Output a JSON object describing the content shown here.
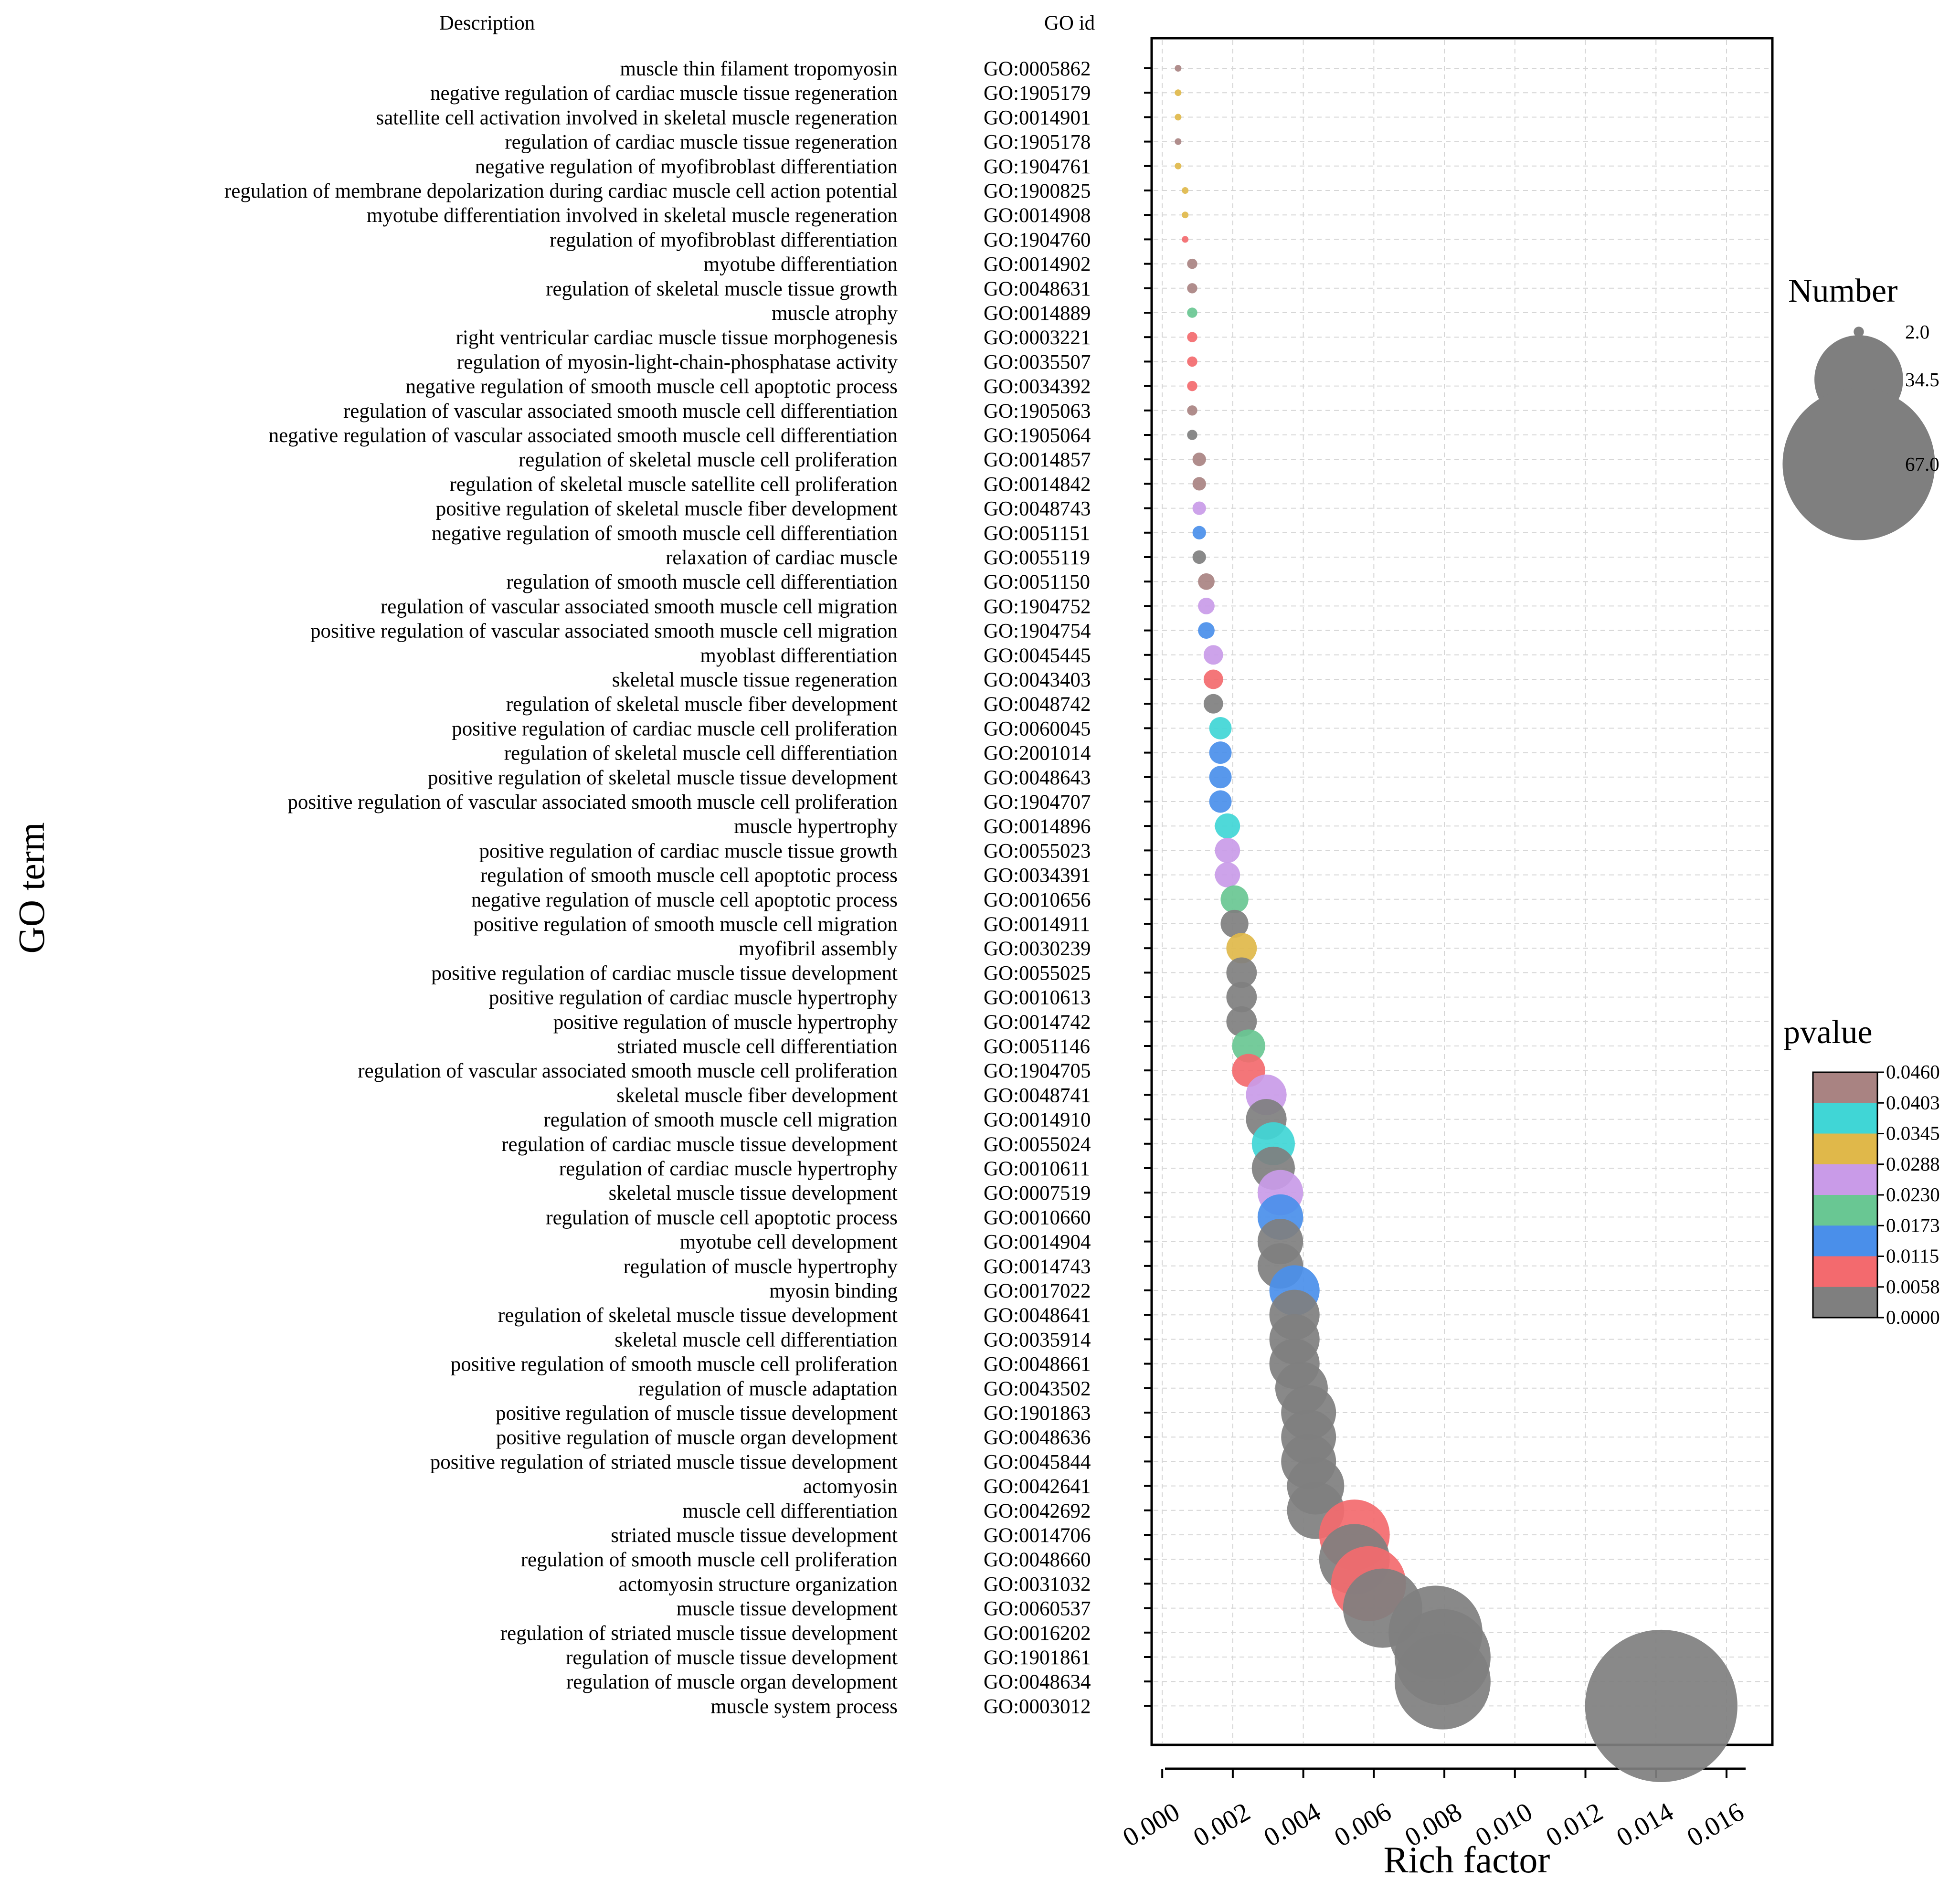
{
  "chart_data": {
    "type": "scatter",
    "headers": {
      "description": "Description",
      "go_id": "GO id"
    },
    "ylabel": "GO term",
    "xlabel": "Rich factor",
    "xlim": [
      -0.0003,
      0.0173
    ],
    "x_ticks": [
      "0.000",
      "0.002",
      "0.004",
      "0.006",
      "0.008",
      "0.010",
      "0.012",
      "0.014",
      "0.016"
    ],
    "grid": true,
    "size_legend": {
      "title": "Number",
      "values": [
        "2.0",
        "34.5",
        "67.0"
      ],
      "color": "#7f7f7f"
    },
    "color_legend": {
      "title": "pvalue",
      "breaks": [
        "0.0460",
        "0.0403",
        "0.0345",
        "0.0288",
        "0.0230",
        "0.0173",
        "0.0115",
        "0.0058",
        "0.0000"
      ],
      "colors": [
        "#a98382",
        "#40d6d6",
        "#e0b84a",
        "#c99be8",
        "#69c793",
        "#4a8fea",
        "#f36a6e",
        "#7f7f7f"
      ]
    },
    "terms": [
      {
        "description": "muscle thin filament tropomyosin",
        "go_id": "GO:0005862",
        "rich": 0.00045,
        "number": 1,
        "color": "#a98382"
      },
      {
        "description": "negative regulation of cardiac muscle tissue regeneration",
        "go_id": "GO:1905179",
        "rich": 0.00045,
        "number": 1,
        "color": "#e0b84a"
      },
      {
        "description": "satellite cell activation involved in skeletal muscle regeneration",
        "go_id": "GO:0014901",
        "rich": 0.00045,
        "number": 1,
        "color": "#e0b84a"
      },
      {
        "description": "regulation of cardiac muscle tissue regeneration",
        "go_id": "GO:1905178",
        "rich": 0.00045,
        "number": 1,
        "color": "#a98382"
      },
      {
        "description": "negative regulation of myofibroblast differentiation",
        "go_id": "GO:1904761",
        "rich": 0.00045,
        "number": 1,
        "color": "#e0b84a"
      },
      {
        "description": "regulation of membrane depolarization during cardiac muscle cell action potential",
        "go_id": "GO:1900825",
        "rich": 0.00065,
        "number": 1,
        "color": "#e0b84a"
      },
      {
        "description": "myotube differentiation involved in skeletal muscle regeneration",
        "go_id": "GO:0014908",
        "rich": 0.00065,
        "number": 1,
        "color": "#e0b84a"
      },
      {
        "description": "regulation of myofibroblast differentiation",
        "go_id": "GO:1904760",
        "rich": 0.00065,
        "number": 1,
        "color": "#f36a6e"
      },
      {
        "description": "myotube differentiation",
        "go_id": "GO:0014902",
        "rich": 0.00085,
        "number": 2,
        "color": "#a98382"
      },
      {
        "description": "regulation of skeletal muscle tissue growth",
        "go_id": "GO:0048631",
        "rich": 0.00085,
        "number": 2,
        "color": "#a98382"
      },
      {
        "description": "muscle atrophy",
        "go_id": "GO:0014889",
        "rich": 0.00085,
        "number": 2,
        "color": "#69c793"
      },
      {
        "description": "right ventricular cardiac muscle tissue morphogenesis",
        "go_id": "GO:0003221",
        "rich": 0.00085,
        "number": 2,
        "color": "#f36a6e"
      },
      {
        "description": "regulation of myosin-light-chain-phosphatase activity",
        "go_id": "GO:0035507",
        "rich": 0.00085,
        "number": 2,
        "color": "#f36a6e"
      },
      {
        "description": "negative regulation of smooth muscle cell apoptotic process",
        "go_id": "GO:0034392",
        "rich": 0.00085,
        "number": 2,
        "color": "#f36a6e"
      },
      {
        "description": "regulation of vascular associated smooth muscle cell differentiation",
        "go_id": "GO:1905063",
        "rich": 0.00085,
        "number": 2,
        "color": "#a98382"
      },
      {
        "description": "negative regulation of vascular associated smooth muscle cell differentiation",
        "go_id": "GO:1905064",
        "rich": 0.00085,
        "number": 2,
        "color": "#7f7f7f"
      },
      {
        "description": "regulation of skeletal muscle cell proliferation",
        "go_id": "GO:0014857",
        "rich": 0.00105,
        "number": 3,
        "color": "#a98382"
      },
      {
        "description": "regulation of skeletal muscle satellite cell proliferation",
        "go_id": "GO:0014842",
        "rich": 0.00105,
        "number": 3,
        "color": "#a98382"
      },
      {
        "description": "positive regulation of skeletal muscle fiber development",
        "go_id": "GO:0048743",
        "rich": 0.00105,
        "number": 3,
        "color": "#c99be8"
      },
      {
        "description": "negative regulation of smooth muscle cell differentiation",
        "go_id": "GO:0051151",
        "rich": 0.00105,
        "number": 3,
        "color": "#4a8fea"
      },
      {
        "description": "relaxation of cardiac muscle",
        "go_id": "GO:0055119",
        "rich": 0.00105,
        "number": 3,
        "color": "#7f7f7f"
      },
      {
        "description": "regulation of smooth muscle cell differentiation",
        "go_id": "GO:0051150",
        "rich": 0.00125,
        "number": 4,
        "color": "#a98382"
      },
      {
        "description": "regulation of vascular associated smooth muscle cell migration",
        "go_id": "GO:1904752",
        "rich": 0.00125,
        "number": 4,
        "color": "#c99be8"
      },
      {
        "description": "positive regulation of vascular associated smooth muscle cell migration",
        "go_id": "GO:1904754",
        "rich": 0.00125,
        "number": 4,
        "color": "#4a8fea"
      },
      {
        "description": "myoblast differentiation",
        "go_id": "GO:0045445",
        "rich": 0.00145,
        "number": 5,
        "color": "#c99be8"
      },
      {
        "description": "skeletal muscle tissue regeneration",
        "go_id": "GO:0043403",
        "rich": 0.00145,
        "number": 5,
        "color": "#f36a6e"
      },
      {
        "description": "regulation of skeletal muscle fiber development",
        "go_id": "GO:0048742",
        "rich": 0.00145,
        "number": 5,
        "color": "#7f7f7f"
      },
      {
        "description": "positive regulation of cardiac muscle cell proliferation",
        "go_id": "GO:0060045",
        "rich": 0.00165,
        "number": 6,
        "color": "#40d6d6"
      },
      {
        "description": "regulation of skeletal muscle cell differentiation",
        "go_id": "GO:2001014",
        "rich": 0.00165,
        "number": 6,
        "color": "#4a8fea"
      },
      {
        "description": "positive regulation of skeletal muscle tissue development",
        "go_id": "GO:0048643",
        "rich": 0.00165,
        "number": 6,
        "color": "#4a8fea"
      },
      {
        "description": "positive regulation of vascular associated smooth muscle cell proliferation",
        "go_id": "GO:1904707",
        "rich": 0.00165,
        "number": 6,
        "color": "#4a8fea"
      },
      {
        "description": "muscle hypertrophy",
        "go_id": "GO:0014896",
        "rich": 0.00185,
        "number": 7,
        "color": "#40d6d6"
      },
      {
        "description": "positive regulation of cardiac muscle tissue growth",
        "go_id": "GO:0055023",
        "rich": 0.00185,
        "number": 7,
        "color": "#c99be8"
      },
      {
        "description": "regulation of smooth muscle cell apoptotic process",
        "go_id": "GO:0034391",
        "rich": 0.00185,
        "number": 7,
        "color": "#c99be8"
      },
      {
        "description": "negative regulation of muscle cell apoptotic process",
        "go_id": "GO:0010656",
        "rich": 0.00205,
        "number": 8,
        "color": "#69c793"
      },
      {
        "description": "positive regulation of smooth muscle cell migration",
        "go_id": "GO:0014911",
        "rich": 0.00205,
        "number": 8,
        "color": "#7f7f7f"
      },
      {
        "description": "myofibril assembly",
        "go_id": "GO:0030239",
        "rich": 0.00225,
        "number": 9,
        "color": "#e0b84a"
      },
      {
        "description": "positive regulation of cardiac muscle tissue development",
        "go_id": "GO:0055025",
        "rich": 0.00225,
        "number": 9,
        "color": "#7f7f7f"
      },
      {
        "description": "positive regulation of cardiac muscle hypertrophy",
        "go_id": "GO:0010613",
        "rich": 0.00225,
        "number": 9,
        "color": "#7f7f7f"
      },
      {
        "description": "positive regulation of muscle hypertrophy",
        "go_id": "GO:0014742",
        "rich": 0.00225,
        "number": 9,
        "color": "#7f7f7f"
      },
      {
        "description": "striated muscle cell differentiation",
        "go_id": "GO:0051146",
        "rich": 0.00245,
        "number": 10,
        "color": "#69c793"
      },
      {
        "description": "regulation of vascular associated smooth muscle cell proliferation",
        "go_id": "GO:1904705",
        "rich": 0.00245,
        "number": 10,
        "color": "#f36a6e"
      },
      {
        "description": "skeletal muscle fiber development",
        "go_id": "GO:0048741",
        "rich": 0.00295,
        "number": 13,
        "color": "#c99be8"
      },
      {
        "description": "regulation of smooth muscle cell migration",
        "go_id": "GO:0014910",
        "rich": 0.00295,
        "number": 13,
        "color": "#7f7f7f"
      },
      {
        "description": "regulation of cardiac muscle tissue development",
        "go_id": "GO:0055024",
        "rich": 0.00315,
        "number": 14,
        "color": "#40d6d6"
      },
      {
        "description": "regulation of cardiac muscle hypertrophy",
        "go_id": "GO:0010611",
        "rich": 0.00315,
        "number": 14,
        "color": "#7f7f7f"
      },
      {
        "description": "skeletal muscle tissue development",
        "go_id": "GO:0007519",
        "rich": 0.00335,
        "number": 15,
        "color": "#c99be8"
      },
      {
        "description": "regulation of muscle cell apoptotic process",
        "go_id": "GO:0010660",
        "rich": 0.00335,
        "number": 15,
        "color": "#4a8fea"
      },
      {
        "description": "myotube cell development",
        "go_id": "GO:0014904",
        "rich": 0.00335,
        "number": 15,
        "color": "#7f7f7f"
      },
      {
        "description": "regulation of muscle hypertrophy",
        "go_id": "GO:0014743",
        "rich": 0.00335,
        "number": 15,
        "color": "#7f7f7f"
      },
      {
        "description": "myosin binding",
        "go_id": "GO:0017022",
        "rich": 0.00375,
        "number": 17,
        "color": "#4a8fea"
      },
      {
        "description": "regulation of skeletal muscle tissue development",
        "go_id": "GO:0048641",
        "rich": 0.00375,
        "number": 17,
        "color": "#7f7f7f"
      },
      {
        "description": "skeletal muscle cell differentiation",
        "go_id": "GO:0035914",
        "rich": 0.00375,
        "number": 17,
        "color": "#7f7f7f"
      },
      {
        "description": "positive regulation of smooth muscle cell proliferation",
        "go_id": "GO:0048661",
        "rich": 0.00375,
        "number": 17,
        "color": "#7f7f7f"
      },
      {
        "description": "regulation of muscle adaptation",
        "go_id": "GO:0043502",
        "rich": 0.00395,
        "number": 18,
        "color": "#7f7f7f"
      },
      {
        "description": "positive regulation of muscle tissue development",
        "go_id": "GO:1901863",
        "rich": 0.00415,
        "number": 19,
        "color": "#7f7f7f"
      },
      {
        "description": "positive regulation of muscle organ development",
        "go_id": "GO:0048636",
        "rich": 0.00415,
        "number": 19,
        "color": "#7f7f7f"
      },
      {
        "description": "positive regulation of striated muscle tissue development",
        "go_id": "GO:0045844",
        "rich": 0.00415,
        "number": 19,
        "color": "#7f7f7f"
      },
      {
        "description": "actomyosin",
        "go_id": "GO:0042641",
        "rich": 0.00435,
        "number": 20,
        "color": "#7f7f7f"
      },
      {
        "description": "muscle cell differentiation",
        "go_id": "GO:0042692",
        "rich": 0.00435,
        "number": 20,
        "color": "#7f7f7f"
      },
      {
        "description": "striated muscle tissue development",
        "go_id": "GO:0014706",
        "rich": 0.00545,
        "number": 26,
        "color": "#f36a6e"
      },
      {
        "description": "regulation of smooth muscle cell proliferation",
        "go_id": "GO:0048660",
        "rich": 0.00545,
        "number": 26,
        "color": "#7f7f7f"
      },
      {
        "description": "actomyosin structure organization",
        "go_id": "GO:0031032",
        "rich": 0.00585,
        "number": 28,
        "color": "#f36a6e"
      },
      {
        "description": "muscle tissue development",
        "go_id": "GO:0060537",
        "rich": 0.00625,
        "number": 30,
        "color": "#7f7f7f"
      },
      {
        "description": "regulation of striated muscle tissue development",
        "go_id": "GO:0016202",
        "rich": 0.00775,
        "number": 37,
        "color": "#7f7f7f"
      },
      {
        "description": "regulation of muscle tissue development",
        "go_id": "GO:1901861",
        "rich": 0.00795,
        "number": 38,
        "color": "#7f7f7f"
      },
      {
        "description": "regulation of muscle organ development",
        "go_id": "GO:0048634",
        "rich": 0.00795,
        "number": 38,
        "color": "#7f7f7f"
      },
      {
        "description": "muscle system process",
        "go_id": "GO:0003012",
        "rich": 0.01415,
        "number": 67,
        "color": "#7f7f7f"
      }
    ]
  }
}
